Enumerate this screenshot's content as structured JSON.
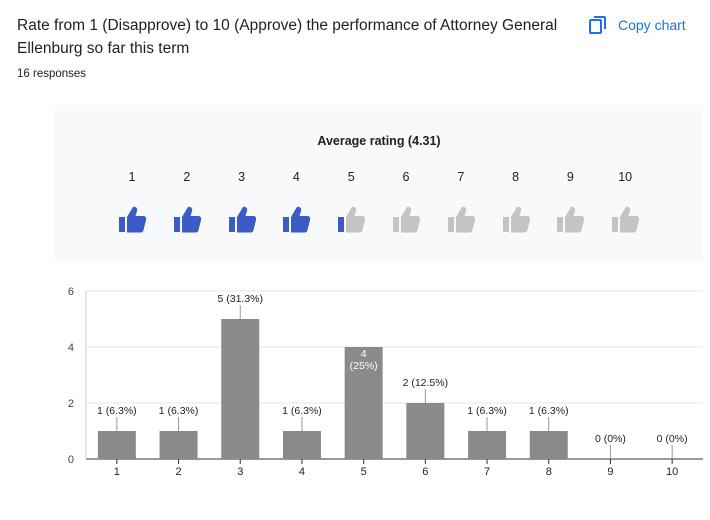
{
  "question": {
    "title": "Rate from 1 (Disapprove) to 10 (Approve) the performance of Attorney General Ellenburg so far this term",
    "responses_label": "16 responses",
    "copy_chart_label": "Copy chart"
  },
  "rating_summary": {
    "title": "Average rating (4.31)",
    "average": 4.31,
    "scale": [
      "1",
      "2",
      "3",
      "4",
      "5",
      "6",
      "7",
      "8",
      "9",
      "10"
    ],
    "icon": "thumbs-up-icon",
    "filled_color": "#3b5bc6",
    "empty_color": "#c4c4c4",
    "accent_color": "#1a73e8"
  },
  "chart_data": {
    "type": "bar",
    "categories": [
      "1",
      "2",
      "3",
      "4",
      "5",
      "6",
      "7",
      "8",
      "9",
      "10"
    ],
    "values": [
      1,
      1,
      5,
      1,
      4,
      2,
      1,
      1,
      0,
      0
    ],
    "data_labels": [
      "1 (6.3%)",
      "1 (6.3%)",
      "5 (31.3%)",
      "1 (6.3%)",
      "4 (25%)",
      "2 (12.5%)",
      "1 (6.3%)",
      "1 (6.3%)",
      "0 (0%)",
      "0 (0%)"
    ],
    "yticks": [
      "0",
      "2",
      "4",
      "6"
    ],
    "ylim": [
      0,
      6
    ],
    "grid": true,
    "bar_color": "#8a8a8a"
  }
}
